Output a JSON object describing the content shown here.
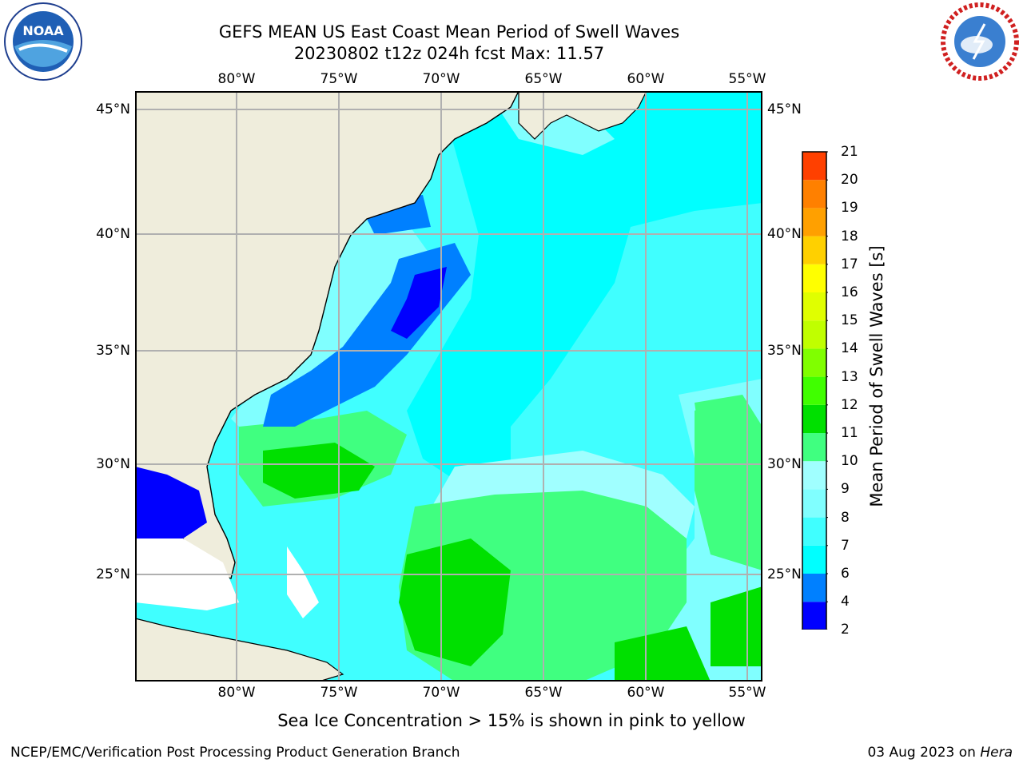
{
  "header": {
    "title_line1": "GEFS MEAN US East Coast Mean Period of Swell Waves",
    "title_line2": "20230802 t12z 024h fcst   Max: 11.57"
  },
  "logos": {
    "left": {
      "text": "NOAA",
      "ring_text": "NATIONAL OCEANIC AND ATMOSPHERIC ADMINISTRATION · U.S. DEPARTMENT OF COMMERCE"
    },
    "right": {
      "ring_text": "NATIONAL WEATHER SERVICE"
    }
  },
  "map": {
    "lon_labels": [
      "80°W",
      "75°W",
      "70°W",
      "65°W",
      "60°W",
      "55°W"
    ],
    "lat_labels": [
      "45°N",
      "40°N",
      "35°N",
      "30°N",
      "25°N"
    ],
    "colors": {
      "land": "#efeddc",
      "coast": "#000000",
      "grid": "#b0b0b0"
    }
  },
  "colorbar": {
    "title": "Mean Period of Swell Waves [s]",
    "levels": [
      "2",
      "4",
      "6",
      "7",
      "8",
      "9",
      "10",
      "11",
      "12",
      "13",
      "14",
      "15",
      "16",
      "17",
      "18",
      "19",
      "20",
      "21"
    ],
    "colors": [
      "#0000ff",
      "#0080ff",
      "#00ffff",
      "#40ffff",
      "#80ffff",
      "#a0ffff",
      "#40ff80",
      "#00e000",
      "#40ff00",
      "#80ff00",
      "#c0ff00",
      "#e0ff00",
      "#ffff00",
      "#ffd000",
      "#ffa000",
      "#ff8000",
      "#ff4000",
      "#ff0000"
    ],
    "under_color": "#0000ff"
  },
  "footer": {
    "note": "Sea Ice Concentration > 15% is shown in pink to yellow",
    "credit": "NCEP/EMC/Verification Post Processing Product Generation Branch",
    "date": "03 Aug 2023 on ",
    "machine": "Hera"
  }
}
